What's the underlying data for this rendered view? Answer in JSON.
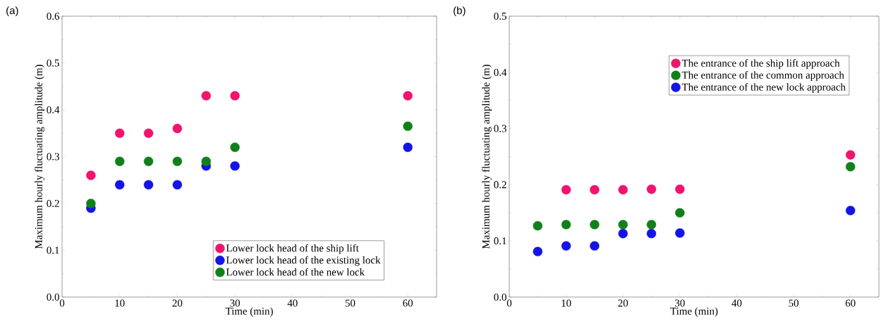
{
  "chart_data": [
    {
      "type": "scatter",
      "xlabel": "Time (min)",
      "ylabel": "Maximum hourly fluctuating amplitude (m)",
      "annotations": [
        "(a)"
      ],
      "x": [
        5,
        10,
        15,
        20,
        25,
        30,
        60
      ],
      "xlim": [
        0,
        65
      ],
      "ylim": [
        0,
        0.6
      ],
      "xticks": [
        0,
        10,
        20,
        30,
        40,
        50,
        60
      ],
      "yticks": [
        {
          "value": 0,
          "label": "0.0"
        },
        0.1,
        0.2,
        0.3,
        0.4,
        0.5,
        0.6
      ],
      "grid": false,
      "legend": "bottom right",
      "series": [
        {
          "name": "Lower lock head of the ship lift",
          "color": "#f0146e",
          "values": [
            0.26,
            0.35,
            0.35,
            0.36,
            0.43,
            0.43,
            0.43
          ]
        },
        {
          "name": "Lower lock head of the existing lock",
          "color": "#1414e6",
          "values": [
            0.19,
            0.24,
            0.24,
            0.24,
            0.28,
            0.28,
            0.32
          ]
        },
        {
          "name": "Lower lock head of the new lock",
          "color": "#12801a",
          "values": [
            0.2,
            0.29,
            0.29,
            0.29,
            0.29,
            0.32,
            0.365
          ]
        }
      ]
    },
    {
      "type": "scatter",
      "xlabel": "Time (min)",
      "ylabel": "Maximum hourly fluctuating amplitude (m)",
      "annotations": [
        "(b)"
      ],
      "x": [
        5,
        10,
        15,
        20,
        25,
        30,
        60
      ],
      "xlim": [
        0,
        65
      ],
      "ylim": [
        0,
        0.5
      ],
      "xticks": [
        0,
        10,
        20,
        30,
        40,
        50,
        60
      ],
      "yticks": [
        {
          "value": 0,
          "label": "0.0"
        },
        0.1,
        0.2,
        0.3,
        0.4,
        0.5
      ],
      "grid": false,
      "legend": "top right",
      "series": [
        {
          "name": "The entrance of the ship lift approach",
          "color": "#f0146e",
          "x": [
            10,
            15,
            20,
            25,
            30,
            60
          ],
          "values": [
            0.191,
            0.191,
            0.191,
            0.192,
            0.192,
            0.253
          ]
        },
        {
          "name": "The entrance of the common approach",
          "color": "#12801a",
          "values": [
            0.127,
            0.129,
            0.129,
            0.129,
            0.129,
            0.15,
            0.232
          ]
        },
        {
          "name": "The entrance of the new lock approach",
          "color": "#1414e6",
          "values": [
            0.081,
            0.091,
            0.091,
            0.113,
            0.113,
            0.114,
            0.154
          ]
        }
      ]
    }
  ]
}
